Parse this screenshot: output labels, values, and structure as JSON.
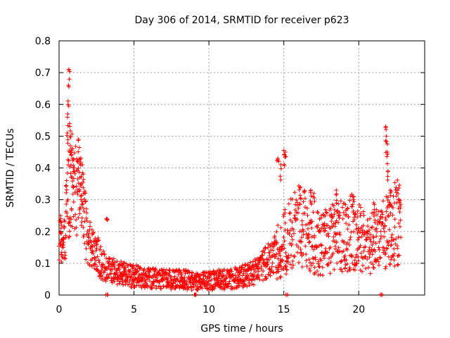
{
  "chart_data": {
    "type": "scatter",
    "title": "Day 306 of 2014, SRMTID for receiver p623",
    "xlabel": "GPS time / hours",
    "ylabel": "SRMTID / TECUs",
    "xlim": [
      0,
      24.4
    ],
    "ylim": [
      0,
      0.8
    ],
    "x_ticks": [
      0,
      5,
      10,
      15,
      20
    ],
    "x_tick_labels": [
      "0",
      "5",
      "10",
      "15",
      "20"
    ],
    "y_ticks": [
      0,
      0.1,
      0.2,
      0.3,
      0.4,
      0.5,
      0.6,
      0.7,
      0.8
    ],
    "y_tick_labels": [
      "0",
      "0.1",
      "0.2",
      "0.3",
      "0.4",
      "0.5",
      "0.6",
      "0.7",
      "0.8"
    ],
    "grid": true,
    "marker": "+",
    "series": [
      {
        "name": "SRMTID",
        "color": "#ff0000",
        "trend": {
          "x": [
            0.0,
            0.3,
            0.6,
            0.9,
            1.2,
            1.5,
            1.8,
            2.2,
            2.6,
            3.0,
            3.5,
            4.0,
            5.0,
            6.0,
            7.0,
            8.0,
            9.0,
            10.0,
            11.0,
            12.0,
            13.0,
            13.5,
            14.0,
            14.5,
            15.0,
            15.5,
            16.0,
            16.5,
            17.0,
            17.5,
            18.0,
            18.5,
            19.0,
            19.5,
            20.0,
            20.5,
            21.0,
            21.5,
            22.0,
            22.5,
            22.8
          ],
          "y": [
            0.2,
            0.14,
            0.3,
            0.38,
            0.3,
            0.32,
            0.2,
            0.14,
            0.12,
            0.09,
            0.08,
            0.07,
            0.06,
            0.055,
            0.05,
            0.05,
            0.045,
            0.045,
            0.05,
            0.055,
            0.07,
            0.09,
            0.11,
            0.13,
            0.16,
            0.2,
            0.22,
            0.2,
            0.17,
            0.16,
            0.17,
            0.19,
            0.18,
            0.2,
            0.18,
            0.17,
            0.16,
            0.18,
            0.2,
            0.23,
            0.24
          ]
        },
        "spikes": [
          {
            "x": 0.1,
            "y": 0.25
          },
          {
            "x": 0.15,
            "y": 0.22
          },
          {
            "x": 0.3,
            "y": 0.18
          },
          {
            "x": 0.5,
            "y": 0.36
          },
          {
            "x": 0.55,
            "y": 0.51
          },
          {
            "x": 0.6,
            "y": 0.6
          },
          {
            "x": 0.62,
            "y": 0.66
          },
          {
            "x": 0.65,
            "y": 0.71
          },
          {
            "x": 0.7,
            "y": 0.54
          },
          {
            "x": 0.75,
            "y": 0.47
          },
          {
            "x": 0.8,
            "y": 0.45
          },
          {
            "x": 0.9,
            "y": 0.43
          },
          {
            "x": 1.0,
            "y": 0.4
          },
          {
            "x": 1.3,
            "y": 0.49
          },
          {
            "x": 1.4,
            "y": 0.37
          },
          {
            "x": 1.5,
            "y": 0.35
          },
          {
            "x": 1.6,
            "y": 0.38
          },
          {
            "x": 3.2,
            "y": 0.24
          },
          {
            "x": 14.6,
            "y": 0.43
          },
          {
            "x": 14.8,
            "y": 0.41
          },
          {
            "x": 15.0,
            "y": 0.455
          },
          {
            "x": 15.1,
            "y": 0.45
          },
          {
            "x": 16.1,
            "y": 0.34
          },
          {
            "x": 16.8,
            "y": 0.33
          },
          {
            "x": 17.0,
            "y": 0.32
          },
          {
            "x": 18.5,
            "y": 0.33
          },
          {
            "x": 19.6,
            "y": 0.31
          },
          {
            "x": 21.0,
            "y": 0.29
          },
          {
            "x": 21.8,
            "y": 0.53
          },
          {
            "x": 21.85,
            "y": 0.5
          },
          {
            "x": 21.9,
            "y": 0.45
          },
          {
            "x": 21.95,
            "y": 0.39
          },
          {
            "x": 22.1,
            "y": 0.33
          },
          {
            "x": 22.6,
            "y": 0.33
          },
          {
            "x": 22.7,
            "y": 0.3
          }
        ],
        "zeros": [
          3.2,
          9.1,
          15.2,
          21.5
        ]
      }
    ]
  }
}
